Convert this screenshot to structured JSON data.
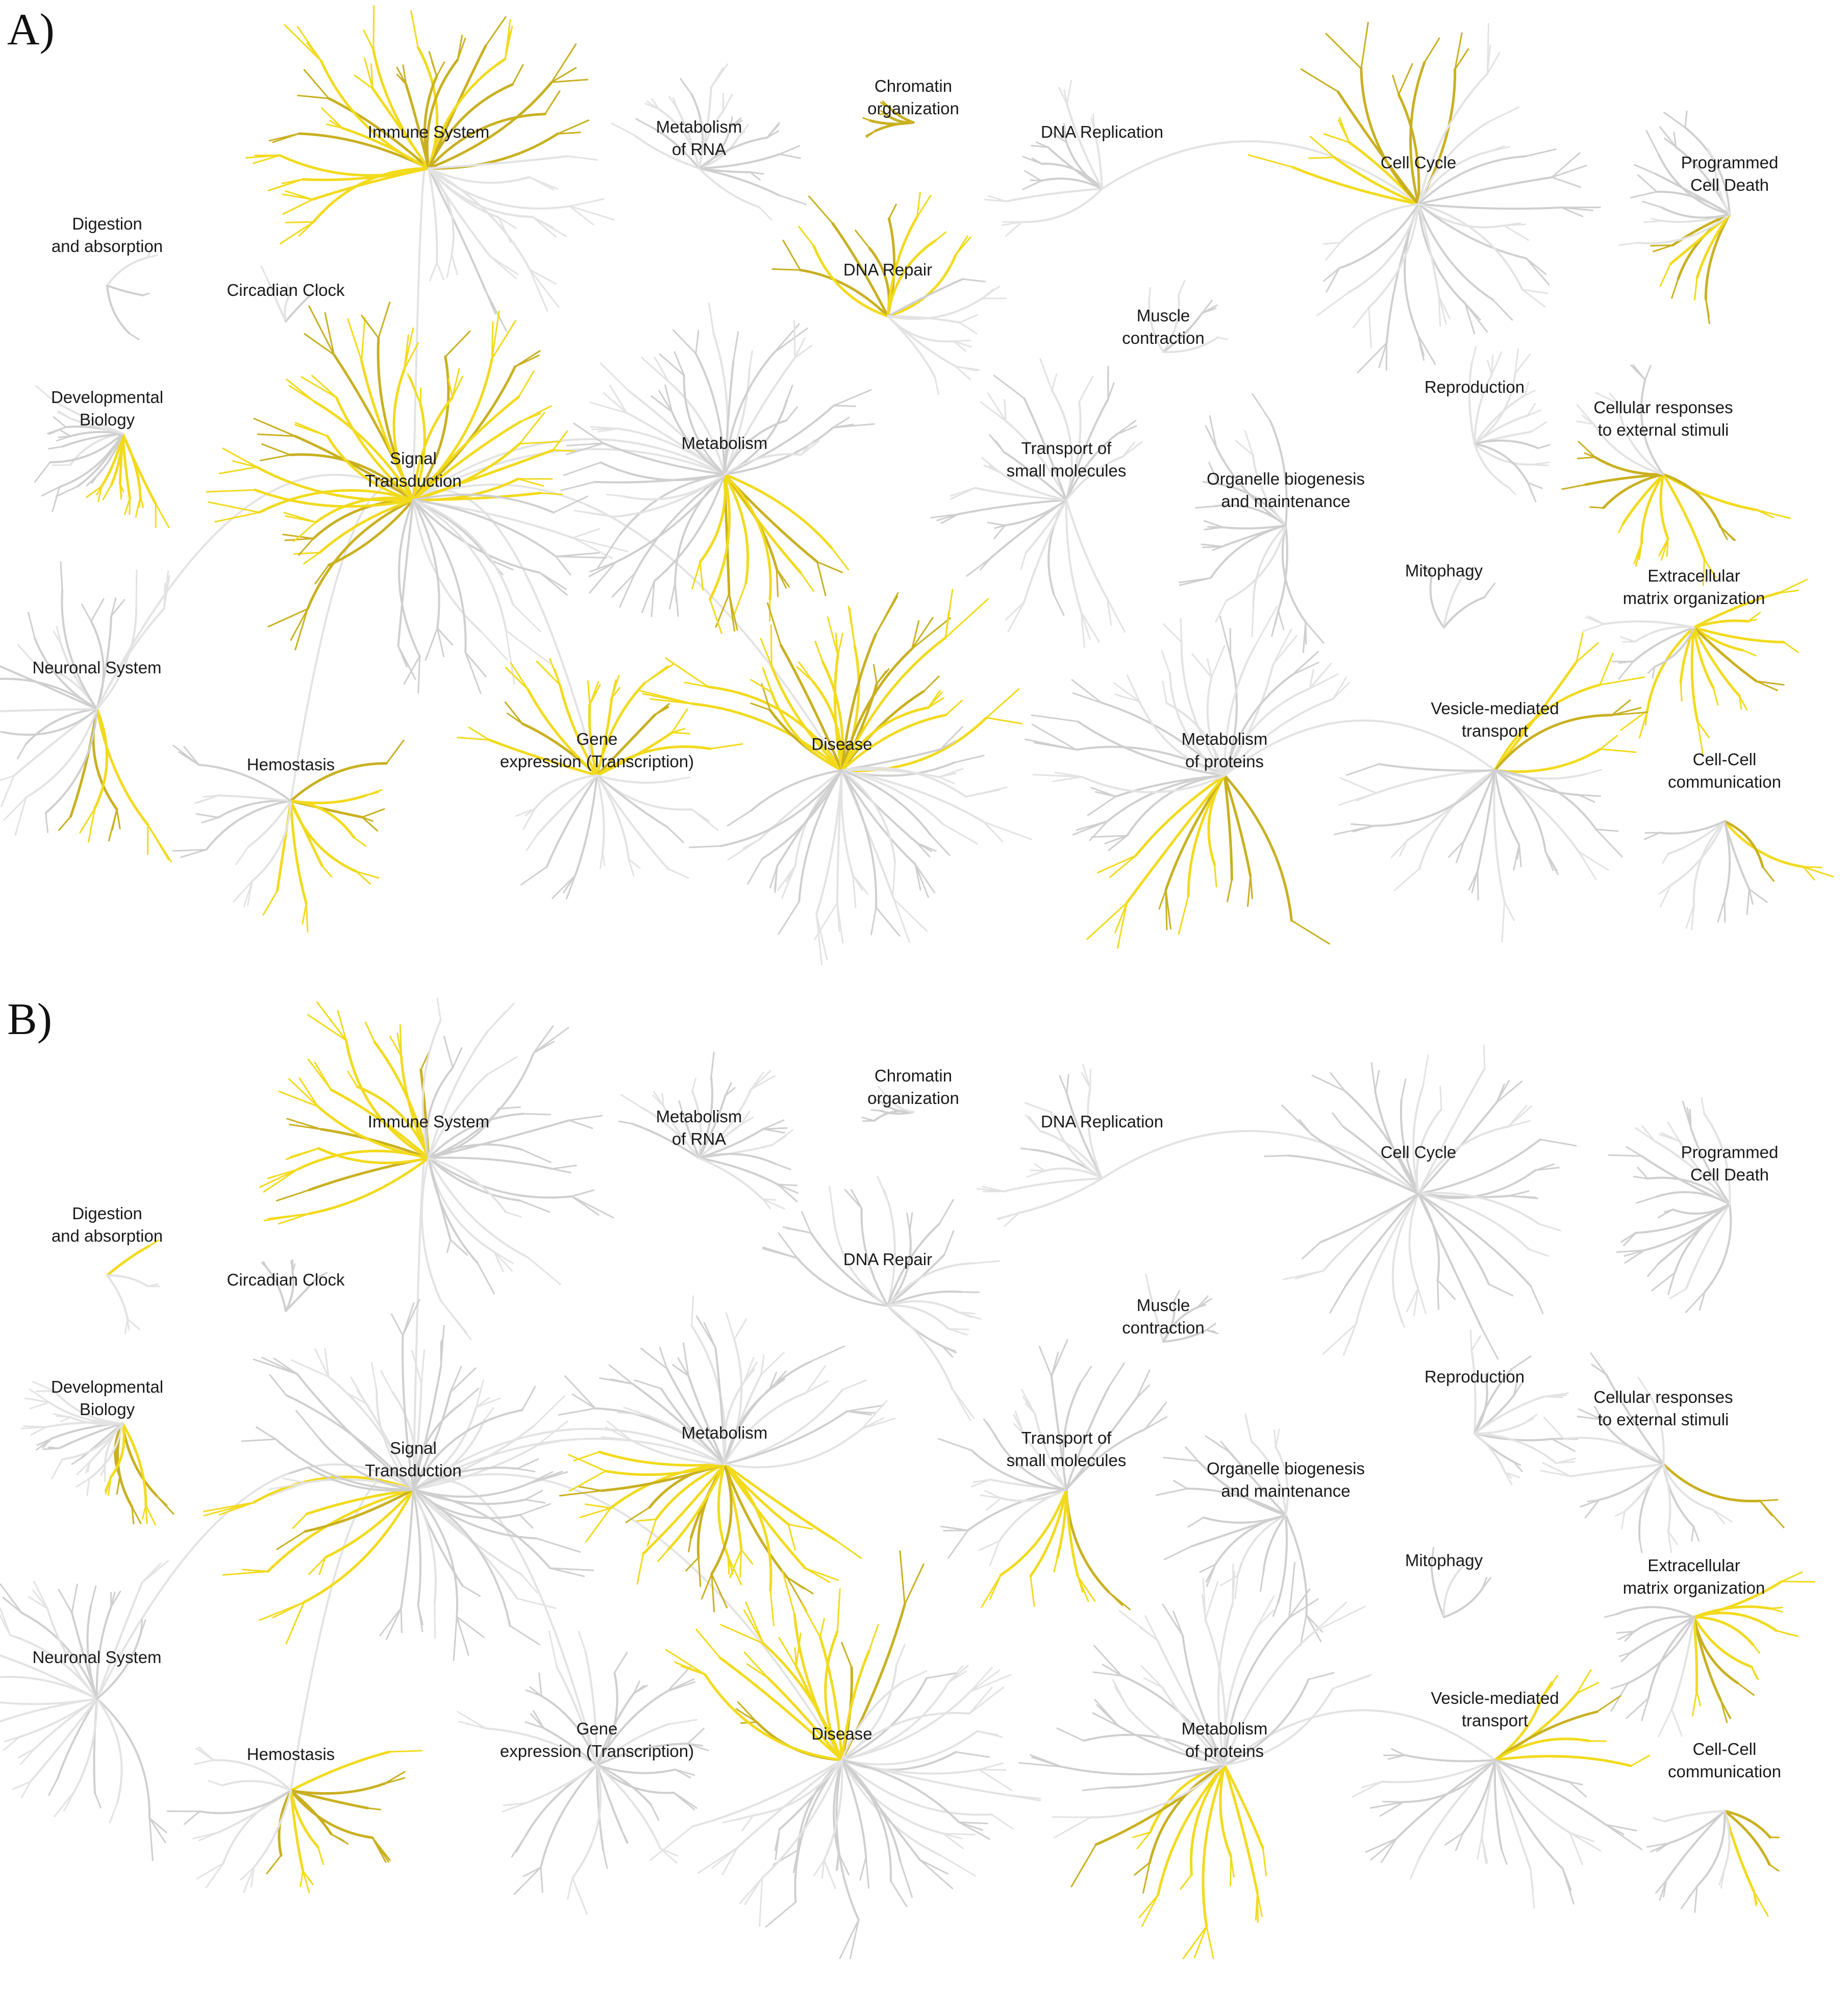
{
  "panels": [
    {
      "label": "A)",
      "pathways": [
        {
          "lines": [
            "Immune System"
          ],
          "highlight": 0.65
        },
        {
          "lines": [
            "Metabolism",
            "of RNA"
          ],
          "highlight": 0.0
        },
        {
          "lines": [
            "Chromatin",
            "organization"
          ],
          "highlight": 0.9
        },
        {
          "lines": [
            "DNA Replication"
          ],
          "highlight": 0.0
        },
        {
          "lines": [
            "Cell Cycle"
          ],
          "highlight": 0.3
        },
        {
          "lines": [
            "Programmed",
            "Cell Death"
          ],
          "highlight": 0.35
        },
        {
          "lines": [
            "Digestion",
            "and absorption"
          ],
          "highlight": 0.0
        },
        {
          "lines": [
            "Circadian Clock"
          ],
          "highlight": 0.0
        },
        {
          "lines": [
            "DNA Repair"
          ],
          "highlight": 0.55
        },
        {
          "lines": [
            "Muscle",
            "contraction"
          ],
          "highlight": 0.0
        },
        {
          "lines": [
            "Developmental",
            "Biology"
          ],
          "highlight": 0.35
        },
        {
          "lines": [
            "Signal",
            "Transduction"
          ],
          "highlight": 0.7
        },
        {
          "lines": [
            "Metabolism"
          ],
          "highlight": 0.25
        },
        {
          "lines": [
            "Transport of",
            "small molecules"
          ],
          "highlight": 0.0
        },
        {
          "lines": [
            "Organelle biogenesis",
            "and maintenance"
          ],
          "highlight": 0.0
        },
        {
          "lines": [
            "Reproduction"
          ],
          "highlight": 0.0
        },
        {
          "lines": [
            "Cellular responses",
            "to external stimuli"
          ],
          "highlight": 0.75
        },
        {
          "lines": [
            "Mitophagy"
          ],
          "highlight": 0.0
        },
        {
          "lines": [
            "Extracellular",
            "matrix organization"
          ],
          "highlight": 0.7
        },
        {
          "lines": [
            "Neuronal System"
          ],
          "highlight": 0.2
        },
        {
          "lines": [
            "Hemostasis"
          ],
          "highlight": 0.6
        },
        {
          "lines": [
            "Gene",
            "expression (Transcription)"
          ],
          "highlight": 0.5
        },
        {
          "lines": [
            "Disease"
          ],
          "highlight": 0.45
        },
        {
          "lines": [
            "Metabolism",
            "of proteins"
          ],
          "highlight": 0.3
        },
        {
          "lines": [
            "Vesicle-mediated",
            "transport"
          ],
          "highlight": 0.2
        },
        {
          "lines": [
            "Cell-Cell",
            "communication"
          ],
          "highlight": 0.2
        }
      ]
    },
    {
      "label": "B)",
      "pathways": [
        {
          "lines": [
            "Immune System"
          ],
          "highlight": 0.4
        },
        {
          "lines": [
            "Metabolism",
            "of RNA"
          ],
          "highlight": 0.0
        },
        {
          "lines": [
            "Chromatin",
            "organization"
          ],
          "highlight": 0.0
        },
        {
          "lines": [
            "DNA Replication"
          ],
          "highlight": 0.0
        },
        {
          "lines": [
            "Cell Cycle"
          ],
          "highlight": 0.0
        },
        {
          "lines": [
            "Programmed",
            "Cell Death"
          ],
          "highlight": 0.0
        },
        {
          "lines": [
            "Digestion",
            "and absorption"
          ],
          "highlight": 0.4
        },
        {
          "lines": [
            "Circadian Clock"
          ],
          "highlight": 0.0
        },
        {
          "lines": [
            "DNA Repair"
          ],
          "highlight": 0.0
        },
        {
          "lines": [
            "Muscle",
            "contraction"
          ],
          "highlight": 0.0
        },
        {
          "lines": [
            "Developmental",
            "Biology"
          ],
          "highlight": 0.3
        },
        {
          "lines": [
            "Signal",
            "Transduction"
          ],
          "highlight": 0.15
        },
        {
          "lines": [
            "Metabolism"
          ],
          "highlight": 0.5
        },
        {
          "lines": [
            "Transport of",
            "small molecules"
          ],
          "highlight": 0.3
        },
        {
          "lines": [
            "Organelle biogenesis",
            "and maintenance"
          ],
          "highlight": 0.0
        },
        {
          "lines": [
            "Reproduction"
          ],
          "highlight": 0.0
        },
        {
          "lines": [
            "Cellular responses",
            "to external stimuli"
          ],
          "highlight": 0.1
        },
        {
          "lines": [
            "Mitophagy"
          ],
          "highlight": 0.0
        },
        {
          "lines": [
            "Extracellular",
            "matrix organization"
          ],
          "highlight": 0.6
        },
        {
          "lines": [
            "Neuronal System"
          ],
          "highlight": 0.0
        },
        {
          "lines": [
            "Hemostasis"
          ],
          "highlight": 0.6
        },
        {
          "lines": [
            "Gene",
            "expression (Transcription)"
          ],
          "highlight": 0.0
        },
        {
          "lines": [
            "Disease"
          ],
          "highlight": 0.3
        },
        {
          "lines": [
            "Metabolism",
            "of proteins"
          ],
          "highlight": 0.35
        },
        {
          "lines": [
            "Vesicle-mediated",
            "transport"
          ],
          "highlight": 0.25
        },
        {
          "lines": [
            "Cell-Cell",
            "communication"
          ],
          "highlight": 0.4
        }
      ]
    }
  ],
  "colors": {
    "base": "#cfcfcf",
    "base_light": "#e3e3e3",
    "highlight": "#f2da1c",
    "highlight_dark": "#c9b020",
    "text": "#1a1a1a"
  }
}
